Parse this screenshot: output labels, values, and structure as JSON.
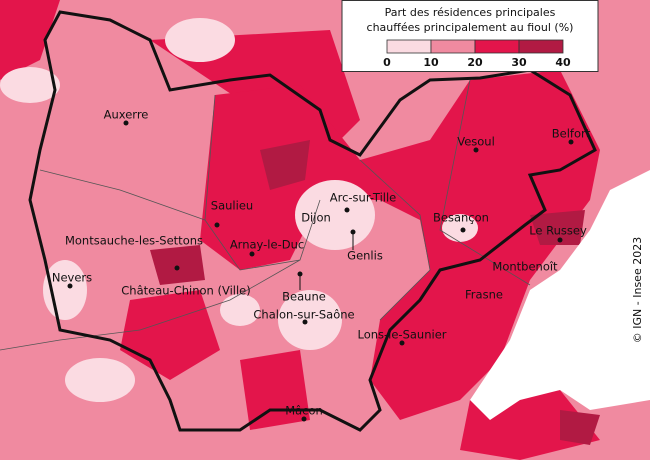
{
  "legend": {
    "title_lines": [
      "Part des résidences principales",
      "chauffées principalement au fioul (%)"
    ],
    "ticks": [
      0,
      10,
      20,
      30,
      40
    ],
    "colors": [
      "#fbdbe2",
      "#f08aa0",
      "#e3154b",
      "#b11a43"
    ]
  },
  "places": [
    "Auxerre",
    "Vesoul",
    "Belfort",
    "Saulieu",
    "Arc-sur-Tille",
    "Dijon",
    "Besançon",
    "Le Russey",
    "Montsauche-les-Settons",
    "Arnay-le-Duc",
    "Genlis",
    "Montbenoît",
    "Nevers",
    "Château-Chinon (Ville)",
    "Beaune",
    "Frasne",
    "Chalon-sur-Saône",
    "Lons-le-Saunier",
    "Mâcon"
  ],
  "credit": "© IGN - Insee 2023"
}
